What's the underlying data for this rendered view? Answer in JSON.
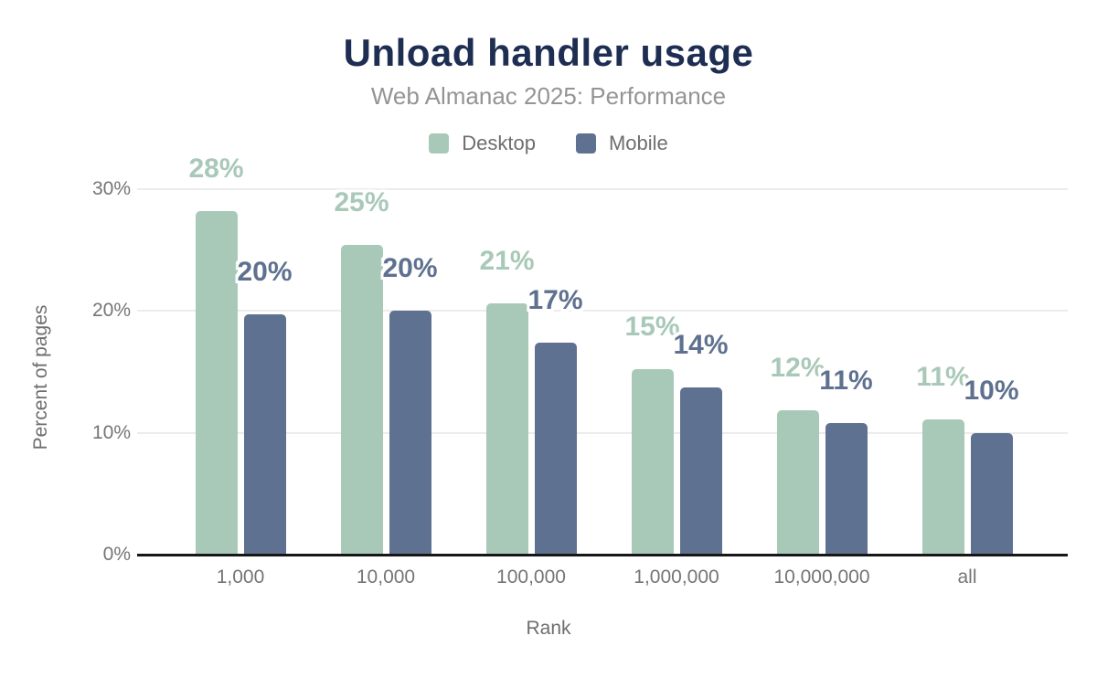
{
  "header": {
    "title": "Unload handler usage",
    "subtitle": "Web Almanac 2025: Performance"
  },
  "colors": {
    "background": "#ffffff",
    "title": "#1e2d52",
    "subtitle": "#949494",
    "legend_text": "#6e6e6e",
    "axis_text": "#757575",
    "axis_title_text": "#6e6e6e",
    "grid": "#ececec",
    "axis_line": "#161616",
    "desktop": "#a8c9b8",
    "mobile": "#5f7190"
  },
  "chart_data": {
    "type": "bar",
    "title": "Unload handler usage",
    "subtitle": "Web Almanac 2025: Performance",
    "xlabel": "Rank",
    "ylabel": "Percent of pages",
    "ylim": [
      0,
      30
    ],
    "grid": "horizontal",
    "legend_position": "top",
    "yticks": [
      {
        "value": 0,
        "label": "0%"
      },
      {
        "value": 10,
        "label": "10%"
      },
      {
        "value": 20,
        "label": "20%"
      },
      {
        "value": 30,
        "label": "30%"
      }
    ],
    "categories": [
      "1,000",
      "10,000",
      "100,000",
      "1,000,000",
      "10,000,000",
      "all"
    ],
    "series": [
      {
        "name": "Desktop",
        "color": "#a8c9b8",
        "values": [
          28.2,
          25.4,
          20.6,
          15.2,
          11.8,
          11.1
        ],
        "labels": [
          "28%",
          "25%",
          "21%",
          "15%",
          "12%",
          "11%"
        ]
      },
      {
        "name": "Mobile",
        "color": "#5f7190",
        "values": [
          19.7,
          20.0,
          17.4,
          13.7,
          10.8,
          10.0
        ],
        "labels": [
          "20%",
          "20%",
          "17%",
          "14%",
          "11%",
          "10%"
        ]
      }
    ]
  }
}
